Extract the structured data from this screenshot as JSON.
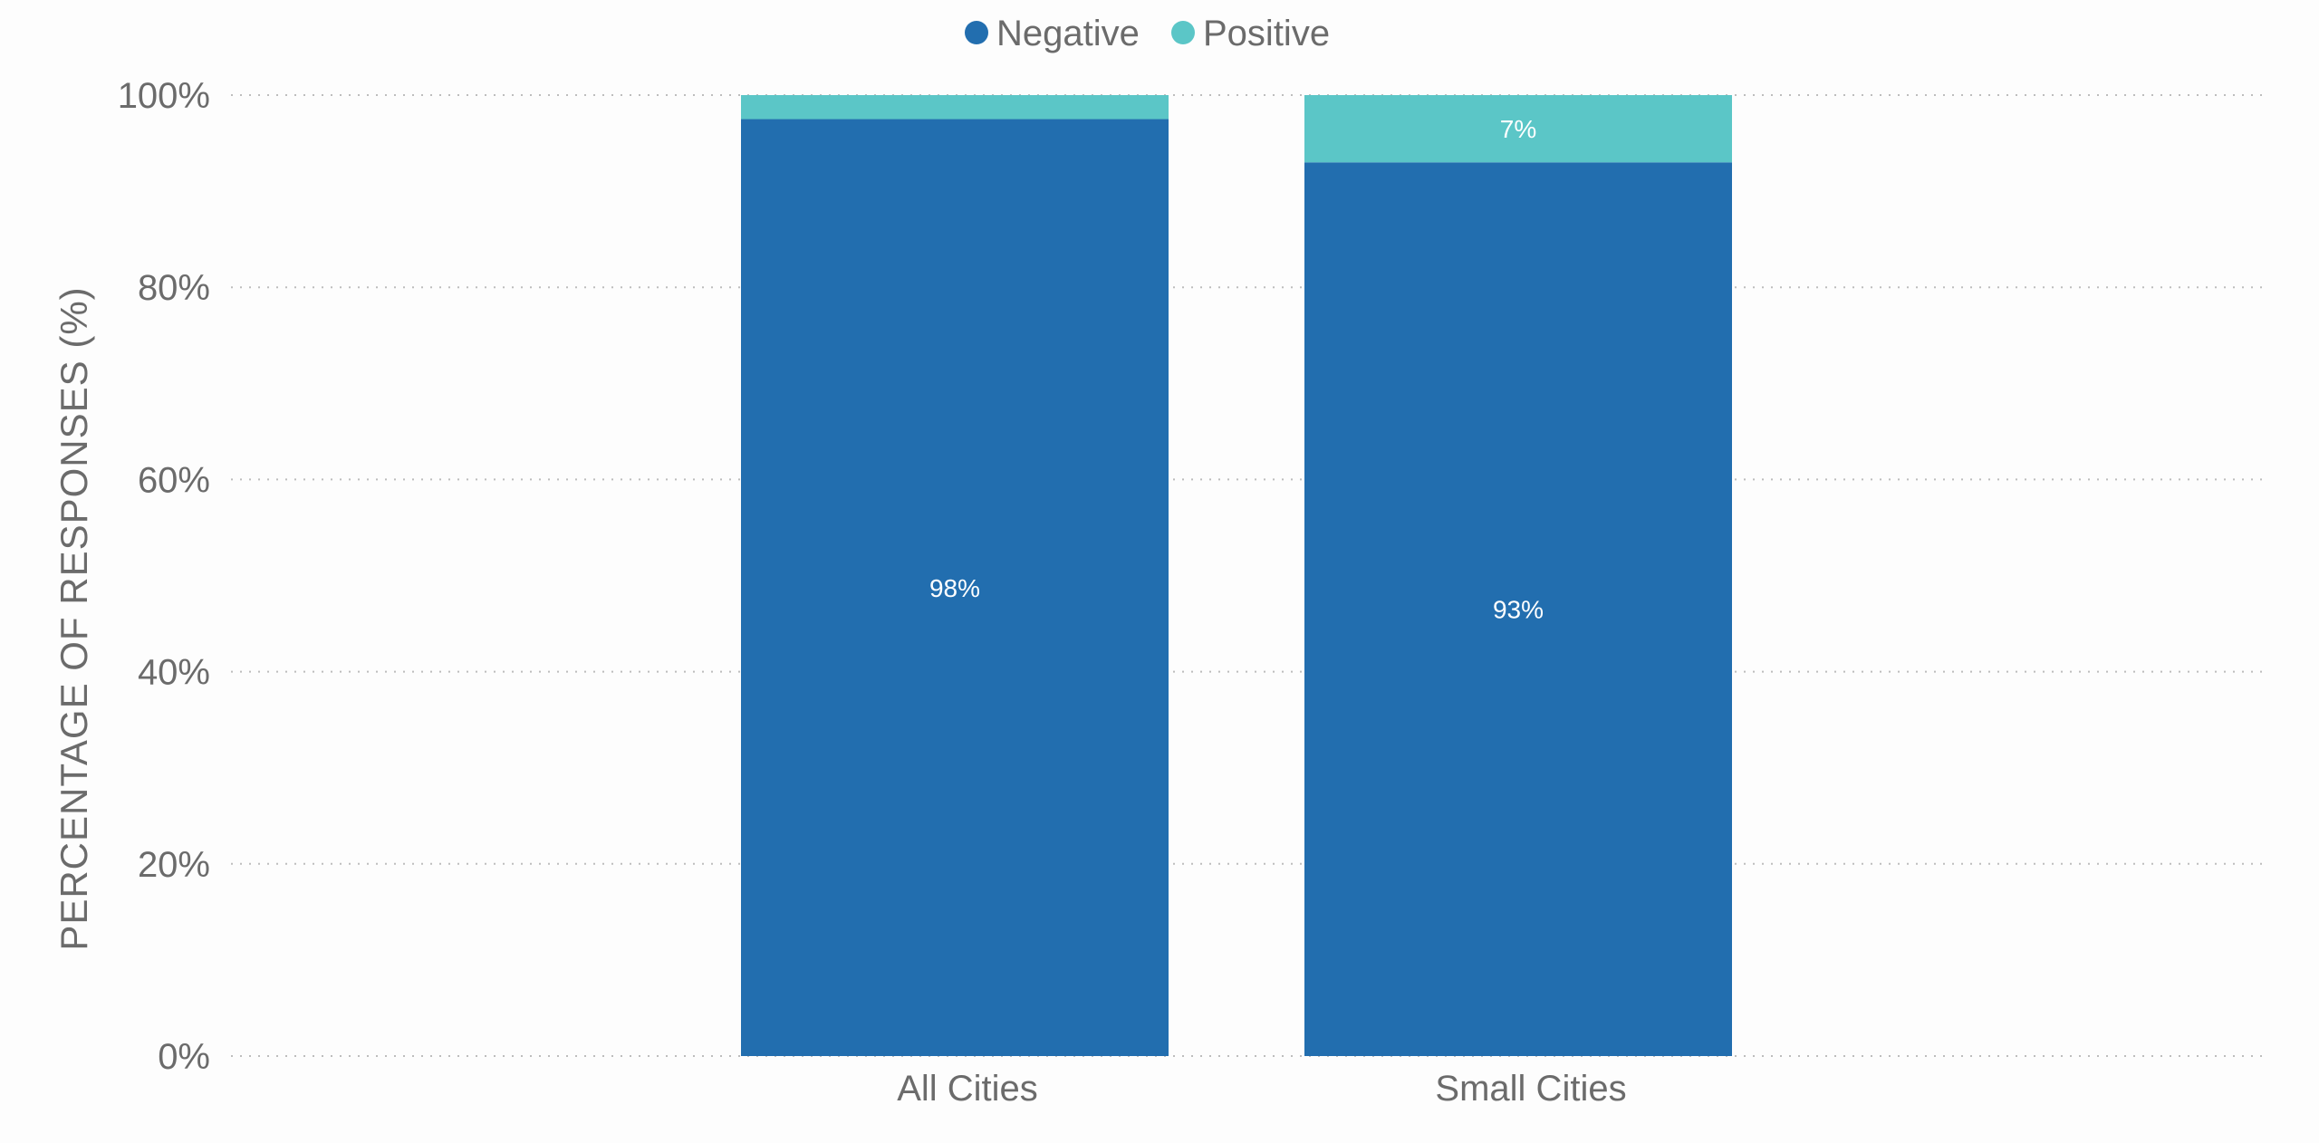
{
  "chart_data": {
    "type": "bar",
    "stacked": true,
    "categories": [
      "All Cities",
      "Small Cities"
    ],
    "series": [
      {
        "name": "Negative",
        "values": [
          97.5,
          93
        ],
        "labels": [
          "98%",
          "93%"
        ],
        "color": "#226eaf"
      },
      {
        "name": "Positive",
        "values": [
          2.5,
          7
        ],
        "labels": [
          "",
          "7%"
        ],
        "color": "#5bc6c7"
      }
    ],
    "title": "",
    "xlabel": "",
    "ylabel": "PERCENTAGE OF RESPONSES (%)",
    "ylim": [
      0,
      100
    ],
    "yticks": [
      0,
      20,
      40,
      60,
      80,
      100
    ],
    "ytick_labels": [
      "0%",
      "20%",
      "40%",
      "60%",
      "80%",
      "100%"
    ],
    "grid": true,
    "legend_position": "top-center"
  }
}
